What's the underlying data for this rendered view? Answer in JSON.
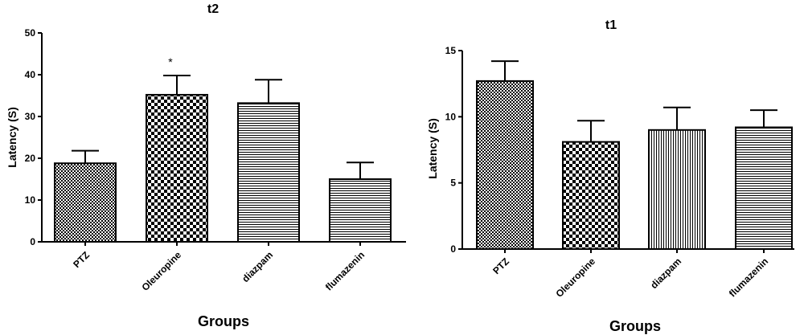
{
  "chart_data": [
    {
      "type": "bar",
      "title": "t2",
      "xlabel": "Groups",
      "ylabel": "Latency (S)",
      "categories": [
        "PTZ",
        "Oleuropine",
        "diazpam",
        "flumazenin"
      ],
      "values": [
        18.8,
        35.2,
        33.2,
        15.0
      ],
      "error": [
        3.0,
        4.6,
        5.6,
        4.0
      ],
      "ylim": [
        0,
        50
      ],
      "yticks": [
        "0",
        "10",
        "20",
        "30",
        "40",
        "50"
      ],
      "patterns": [
        "fine-checker",
        "checker",
        "horizontal",
        "horizontal"
      ],
      "annotations": [
        {
          "category": "Oleuropine",
          "text": "*"
        }
      ]
    },
    {
      "type": "bar",
      "title": "t1",
      "xlabel": "Groups",
      "ylabel": "Latency (S)",
      "categories": [
        "PTZ",
        "Oleuropine",
        "diazpam",
        "flumazenin"
      ],
      "values": [
        12.7,
        8.1,
        9.0,
        9.2
      ],
      "error": [
        1.5,
        1.6,
        1.7,
        1.3
      ],
      "ylim": [
        0,
        15
      ],
      "yticks": [
        "0",
        "5",
        "10",
        "15"
      ],
      "patterns": [
        "fine-checker",
        "checker",
        "vertical",
        "horizontal"
      ],
      "annotations": []
    }
  ]
}
